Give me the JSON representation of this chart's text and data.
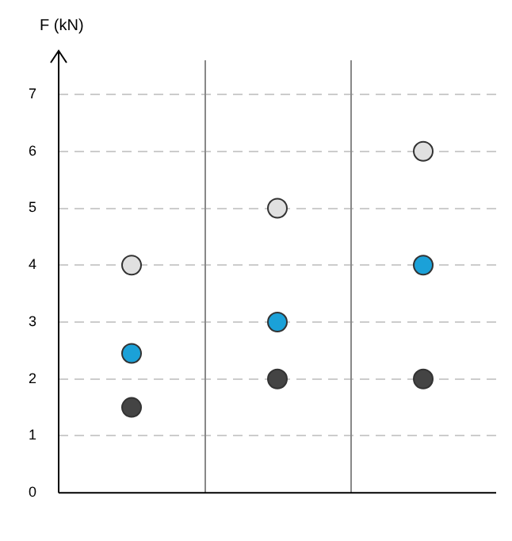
{
  "chart_data": {
    "type": "scatter",
    "ylabel": "F (kN)",
    "categories": [
      null,
      null,
      null
    ],
    "series": [
      {
        "color": "#444444",
        "values": [
          1.5,
          2,
          2
        ]
      },
      {
        "color": "#1ba1d8",
        "values": [
          2.45,
          3,
          4
        ]
      },
      {
        "color": "#e0e0e0",
        "values": [
          4,
          5,
          6
        ]
      }
    ],
    "ylim": [
      0,
      7.6
    ],
    "yticks": [
      0,
      1,
      2,
      3,
      4,
      5,
      6,
      7
    ],
    "grid": true,
    "legend": false,
    "marker": "circle"
  }
}
